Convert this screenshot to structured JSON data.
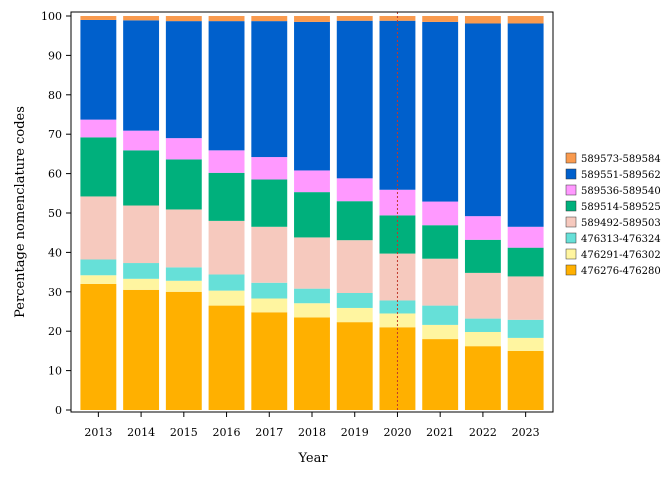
{
  "chart_data": {
    "type": "bar",
    "stacked": true,
    "xlabel": "Year",
    "ylabel": "Percentage nomenclature codes",
    "ylim": [
      0,
      100
    ],
    "yticks": [
      0,
      10,
      20,
      30,
      40,
      50,
      60,
      70,
      80,
      90,
      100
    ],
    "categories": [
      "2013",
      "2014",
      "2015",
      "2016",
      "2017",
      "2018",
      "2019",
      "2020",
      "2021",
      "2022",
      "2023"
    ],
    "reference_line": {
      "x": "2020",
      "style": "dotted",
      "color": "#c0392b"
    },
    "legend_position": "right",
    "series": [
      {
        "name": "476276-476280",
        "color": "#ffb000",
        "values": [
          32.0,
          30.5,
          30.0,
          26.5,
          24.8,
          23.5,
          22.3,
          21.0,
          18.0,
          16.2,
          15.0
        ]
      },
      {
        "name": "476291-476302",
        "color": "#fff5a0",
        "values": [
          2.2,
          2.8,
          2.8,
          3.8,
          3.5,
          3.6,
          3.6,
          3.5,
          3.6,
          3.6,
          3.3
        ]
      },
      {
        "name": "476313-476324",
        "color": "#66e0d8",
        "values": [
          4.0,
          4.0,
          3.4,
          4.1,
          4.0,
          3.7,
          3.8,
          3.3,
          4.9,
          3.4,
          4.6
        ]
      },
      {
        "name": "589492-589503",
        "color": "#f6c9be",
        "values": [
          16.0,
          14.6,
          14.7,
          13.6,
          14.2,
          13.0,
          13.4,
          11.9,
          11.9,
          11.6,
          11.0
        ]
      },
      {
        "name": "589514-589525",
        "color": "#00b07c",
        "values": [
          15.0,
          14.0,
          12.7,
          12.2,
          12.0,
          11.5,
          9.9,
          9.7,
          8.5,
          8.4,
          7.3
        ]
      },
      {
        "name": "589536-589540",
        "color": "#ff99ff",
        "values": [
          4.5,
          5.0,
          5.4,
          5.7,
          5.7,
          5.5,
          5.8,
          6.5,
          6.0,
          6.0,
          5.3
        ]
      },
      {
        "name": "589551-589562",
        "color": "#0060cc",
        "values": [
          25.3,
          28.0,
          29.7,
          32.8,
          34.5,
          37.7,
          40.0,
          42.9,
          45.6,
          48.9,
          51.6
        ]
      },
      {
        "name": "589573-589584",
        "color": "#f99a4e",
        "values": [
          1.0,
          1.1,
          1.3,
          1.3,
          1.3,
          1.5,
          1.2,
          1.2,
          1.5,
          1.9,
          1.9
        ]
      }
    ]
  }
}
